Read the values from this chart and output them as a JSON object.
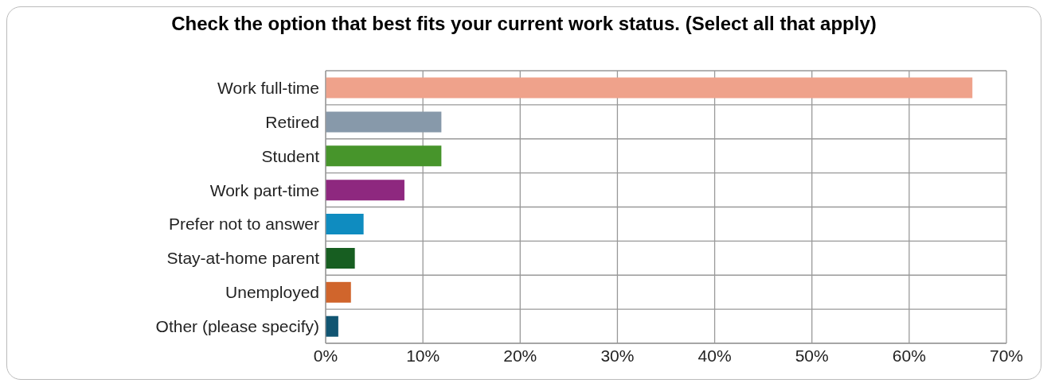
{
  "chart_data": {
    "type": "bar",
    "orientation": "horizontal",
    "title": "Check the option that best fits your current work status. (Select all that apply)",
    "categories": [
      "Work full-time",
      "Retired",
      "Student",
      "Work part-time",
      "Prefer not to answer",
      "Stay-at-home parent",
      "Unemployed",
      "Other (please specify)"
    ],
    "values": [
      66.5,
      11.9,
      11.9,
      8.1,
      3.9,
      3.0,
      2.6,
      1.3
    ],
    "colors": [
      "#efa28b",
      "#8799aa",
      "#47952b",
      "#8e287f",
      "#0f8cc0",
      "#175e21",
      "#d0652c",
      "#115572"
    ],
    "xlim": [
      0,
      70
    ],
    "xticks": [
      {
        "value": 0,
        "label": "0%"
      },
      {
        "value": 10,
        "label": "10%"
      },
      {
        "value": 20,
        "label": "20%"
      },
      {
        "value": 30,
        "label": "30%"
      },
      {
        "value": 40,
        "label": "40%"
      },
      {
        "value": 50,
        "label": "50%"
      },
      {
        "value": 60,
        "label": "60%"
      },
      {
        "value": 70,
        "label": "70%"
      }
    ],
    "grid": true
  }
}
